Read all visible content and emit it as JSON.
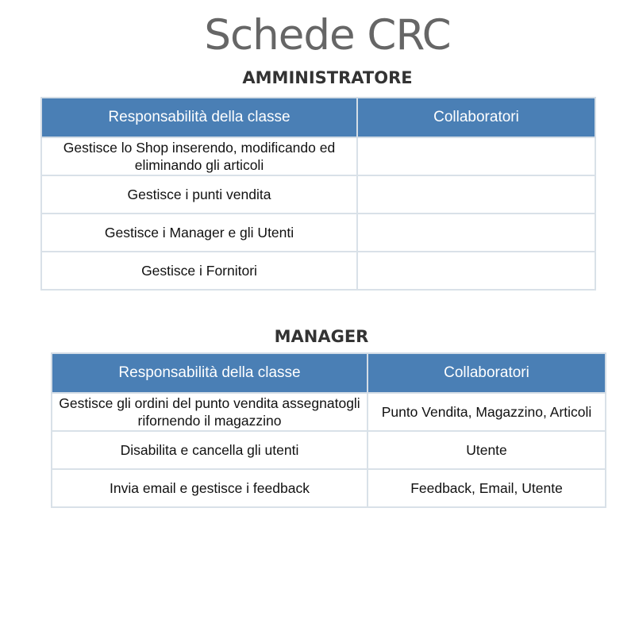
{
  "title": "Schede CRC",
  "admin": {
    "heading": "AMMINISTRATORE",
    "headers": {
      "responsibility": "Responsabilità della classe",
      "collaborators": "Collaboratori"
    },
    "rows": [
      {
        "responsibility": "Gestisce lo Shop inserendo, modificando ed eliminando gli articoli",
        "collaborators": ""
      },
      {
        "responsibility": "Gestisce i punti vendita",
        "collaborators": ""
      },
      {
        "responsibility": "Gestisce i Manager e gli Utenti",
        "collaborators": ""
      },
      {
        "responsibility": "Gestisce i Fornitori",
        "collaborators": ""
      }
    ]
  },
  "manager": {
    "heading": "MANAGER",
    "headers": {
      "responsibility": "Responsabilità della classe",
      "collaborators": "Collaboratori"
    },
    "rows": [
      {
        "responsibility": "Gestisce gli ordini del punto vendita assegnatogli rifornendo il magazzino",
        "collaborators": "Punto Vendita, Magazzino, Articoli"
      },
      {
        "responsibility": "Disabilita e cancella gli utenti",
        "collaborators": "Utente"
      },
      {
        "responsibility": "Invia email e gestisce i feedback",
        "collaborators": "Feedback, Email, Utente"
      }
    ]
  },
  "colors": {
    "header_fill": "#4a7fb5",
    "border": "#d9e1e8",
    "title_gray": "#666666"
  }
}
